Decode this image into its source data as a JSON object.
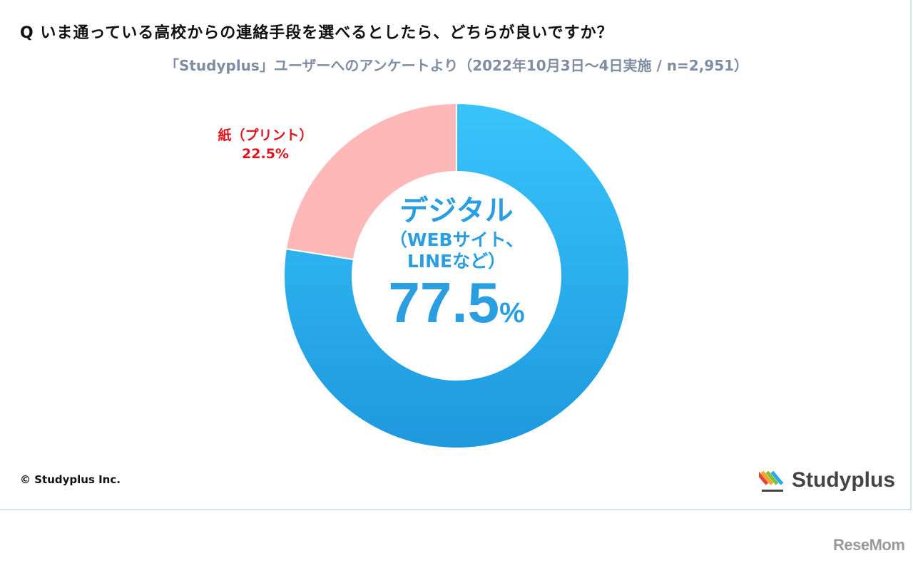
{
  "title": "Q いま通っている高校からの連絡手段を選べるとしたら、どちらが良いですか？",
  "subtitle": "「Studyplus」ユーザーへのアンケートより（2022年10月3日～4日実施 / n=2,951）",
  "chart_data": {
    "type": "pie",
    "donut": true,
    "slices": [
      {
        "label": "デジタル",
        "sublabel": "（WEBサイト、LINEなど）",
        "value": 77.5,
        "display": "77.5",
        "unit": "%",
        "color": "#2ea8ea"
      },
      {
        "label": "紙（プリント）",
        "value": 22.5,
        "display": "22.5%",
        "color": "#ffb8b8"
      }
    ],
    "label_colors": {
      "digital": "#2a9ee0",
      "paper": "#e0141c"
    },
    "start_angle": "12 o'clock",
    "direction": "clockwise"
  },
  "center": {
    "category": "デジタル",
    "sub_line1": "（WEBサイト、",
    "sub_line2": "LINEなど）",
    "percent": "77.5",
    "percent_sign": "%"
  },
  "paper_label": {
    "line1": "紙（プリント）",
    "line2": "22.5%"
  },
  "footer": {
    "copyright": "© Studyplus Inc.",
    "logo_text": "Studyplus"
  },
  "watermark": "ReseMom"
}
